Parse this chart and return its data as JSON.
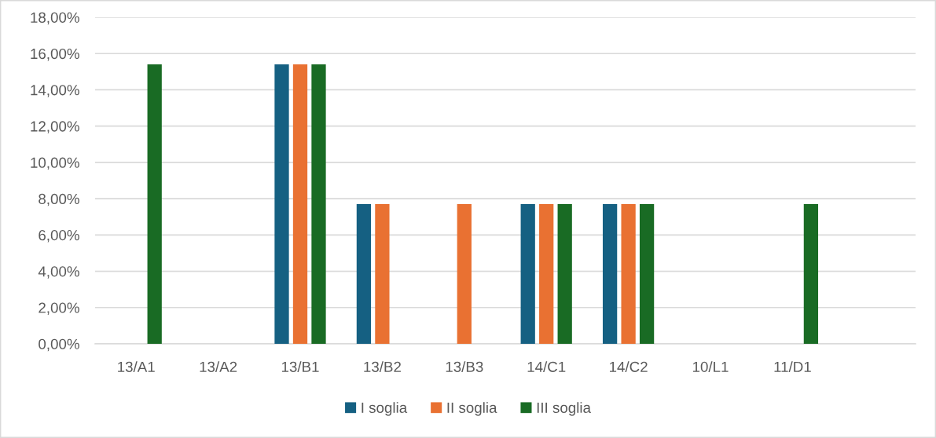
{
  "chart_data": {
    "type": "bar",
    "categories": [
      "13/A1",
      "13/A2",
      "13/B1",
      "13/B2",
      "13/B3",
      "14/C1",
      "14/C2",
      "10/L1",
      "11/D1",
      null
    ],
    "series": [
      {
        "name": "I soglia",
        "color": "#156082",
        "values": [
          null,
          null,
          15.4,
          7.7,
          null,
          7.7,
          7.7,
          null,
          null,
          null
        ]
      },
      {
        "name": "II soglia",
        "color": "#e97132",
        "values": [
          null,
          null,
          15.4,
          7.7,
          7.7,
          7.7,
          7.7,
          null,
          null,
          null
        ]
      },
      {
        "name": "III soglia",
        "color": "#196b24",
        "values": [
          15.4,
          null,
          15.4,
          null,
          null,
          7.7,
          7.7,
          null,
          7.7,
          null
        ]
      }
    ],
    "ylim": [
      0,
      18
    ],
    "yticks": [
      {
        "value": 0,
        "label": "0,00%"
      },
      {
        "value": 2,
        "label": "2,00%"
      },
      {
        "value": 4,
        "label": "4,00%"
      },
      {
        "value": 6,
        "label": "6,00%"
      },
      {
        "value": 8,
        "label": "8,00%"
      },
      {
        "value": 10,
        "label": "10,00%"
      },
      {
        "value": 12,
        "label": "12,00%"
      },
      {
        "value": 14,
        "label": "14,00%"
      },
      {
        "value": 16,
        "label": "16,00%"
      },
      {
        "value": 18,
        "label": "18,00%"
      }
    ],
    "grid": "y",
    "legend": "bottom"
  }
}
